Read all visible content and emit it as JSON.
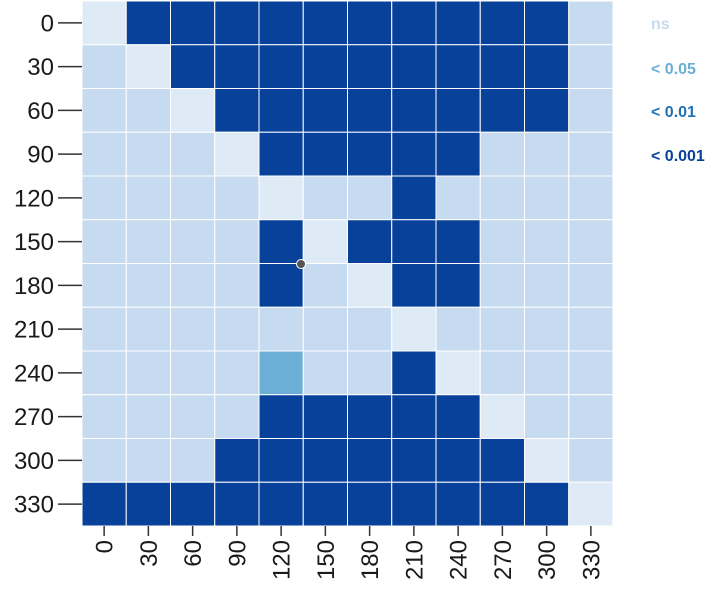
{
  "chart_data": {
    "type": "heatmap",
    "title": "",
    "xlabel": "",
    "ylabel": "",
    "x_categories": [
      "0",
      "30",
      "60",
      "90",
      "120",
      "150",
      "180",
      "210",
      "240",
      "270",
      "300",
      "330"
    ],
    "y_categories": [
      "0",
      "30",
      "60",
      "90",
      "120",
      "150",
      "180",
      "210",
      "240",
      "270",
      "300",
      "330"
    ],
    "levels": [
      {
        "label": "ns",
        "color": "#c6dbef"
      },
      {
        "label": "< 0.05",
        "color": "#6baed6"
      },
      {
        "label": "< 0.01",
        "color": "#2171b5"
      },
      {
        "label": "< 0.001",
        "color": "#08419a"
      }
    ],
    "diagonal_color": "#deebf7",
    "cells": [
      [
        -1,
        3,
        3,
        3,
        3,
        3,
        3,
        3,
        3,
        3,
        3,
        0
      ],
      [
        0,
        -1,
        3,
        3,
        3,
        3,
        3,
        3,
        3,
        3,
        3,
        0
      ],
      [
        0,
        0,
        -1,
        3,
        3,
        3,
        3,
        3,
        3,
        3,
        3,
        0
      ],
      [
        0,
        0,
        0,
        -1,
        3,
        3,
        3,
        3,
        3,
        0,
        0,
        0
      ],
      [
        0,
        0,
        0,
        0,
        -1,
        0,
        0,
        3,
        0,
        0,
        0,
        0
      ],
      [
        0,
        0,
        0,
        0,
        3,
        -1,
        3,
        3,
        3,
        0,
        0,
        0
      ],
      [
        0,
        0,
        0,
        0,
        3,
        0,
        -1,
        3,
        3,
        0,
        0,
        0
      ],
      [
        0,
        0,
        0,
        0,
        0,
        0,
        0,
        -1,
        0,
        0,
        0,
        0
      ],
      [
        0,
        0,
        0,
        0,
        1,
        0,
        0,
        3,
        -1,
        0,
        0,
        0
      ],
      [
        0,
        0,
        0,
        0,
        3,
        3,
        3,
        3,
        3,
        -1,
        0,
        0
      ],
      [
        0,
        0,
        0,
        3,
        3,
        3,
        3,
        3,
        3,
        3,
        -1,
        0
      ],
      [
        3,
        3,
        3,
        3,
        3,
        3,
        3,
        3,
        3,
        3,
        3,
        -1
      ]
    ],
    "grid": true,
    "legend_placement": "top-right"
  },
  "colors": {
    "grid_line": "#ffffff",
    "tick": "#333333",
    "label": "#1a1a1a",
    "cursor_dot": "#555555"
  }
}
